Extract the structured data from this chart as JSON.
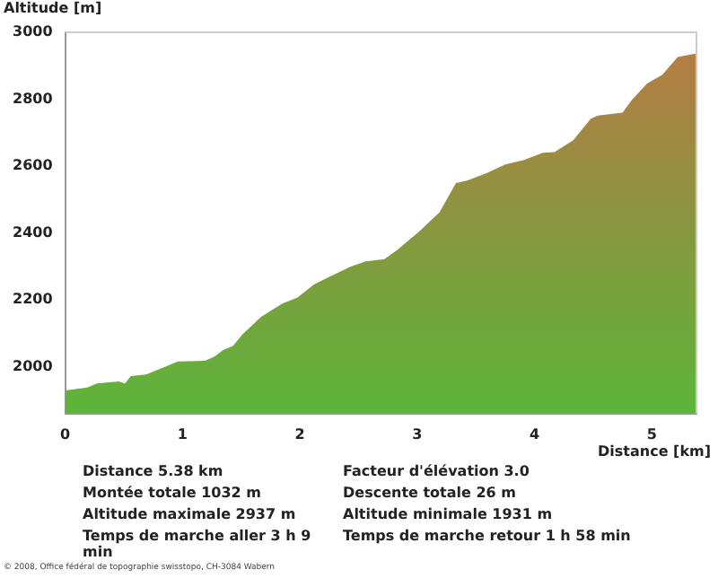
{
  "chart_data": {
    "type": "area",
    "xlabel": "Distance [km]",
    "ylabel": "Altitude [m]",
    "x": [
      0,
      0.19,
      0.27,
      0.46,
      0.51,
      0.56,
      0.69,
      0.85,
      0.96,
      1.19,
      1.27,
      1.35,
      1.43,
      1.51,
      1.67,
      1.85,
      1.98,
      2.12,
      2.25,
      2.43,
      2.56,
      2.72,
      2.83,
      3.01,
      3.17,
      3.19,
      3.33,
      3.43,
      3.59,
      3.75,
      3.91,
      4.07,
      4.17,
      4.33,
      4.48,
      4.54,
      4.75,
      4.83,
      4.96,
      5.09,
      5.22,
      5.38
    ],
    "series": [
      {
        "color": "#5cb53a",
        "values": [
          1929,
          1938,
          1950,
          1956,
          1950,
          1972,
          1977,
          2000,
          2016,
          2018,
          2030,
          2051,
          2062,
          2096,
          2149,
          2189,
          2207,
          2246,
          2269,
          2299,
          2315,
          2322,
          2349,
          2402,
          2455,
          2461,
          2549,
          2557,
          2579,
          2605,
          2618,
          2640,
          2642,
          2677,
          2742,
          2751,
          2760,
          2798,
          2847,
          2873,
          2926,
          2937
        ]
      }
    ],
    "xlim": [
      0,
      5.38
    ],
    "xticks": [
      0,
      1,
      2,
      3,
      4,
      5
    ],
    "ylim": [
      1860,
      3000
    ],
    "yticks": [
      2000,
      2200,
      2400,
      2600,
      2800,
      3000
    ],
    "grid": false,
    "legend": false,
    "marker": "none",
    "annotations": [
      "Distance 5.38 km",
      "Facteur d'élévation 3.0",
      "Montée totale  1032 m",
      "Descente totale  26 m",
      "Altitude maximale  2937 m",
      "Altitude minimale  1931 m",
      "Temps de marche aller  3 h 9 min",
      "Temps de marche retour  1 h 58 min",
      "© 2008, Office fédéral de topographie swisstopo, CH-3084 Wabern"
    ]
  }
}
